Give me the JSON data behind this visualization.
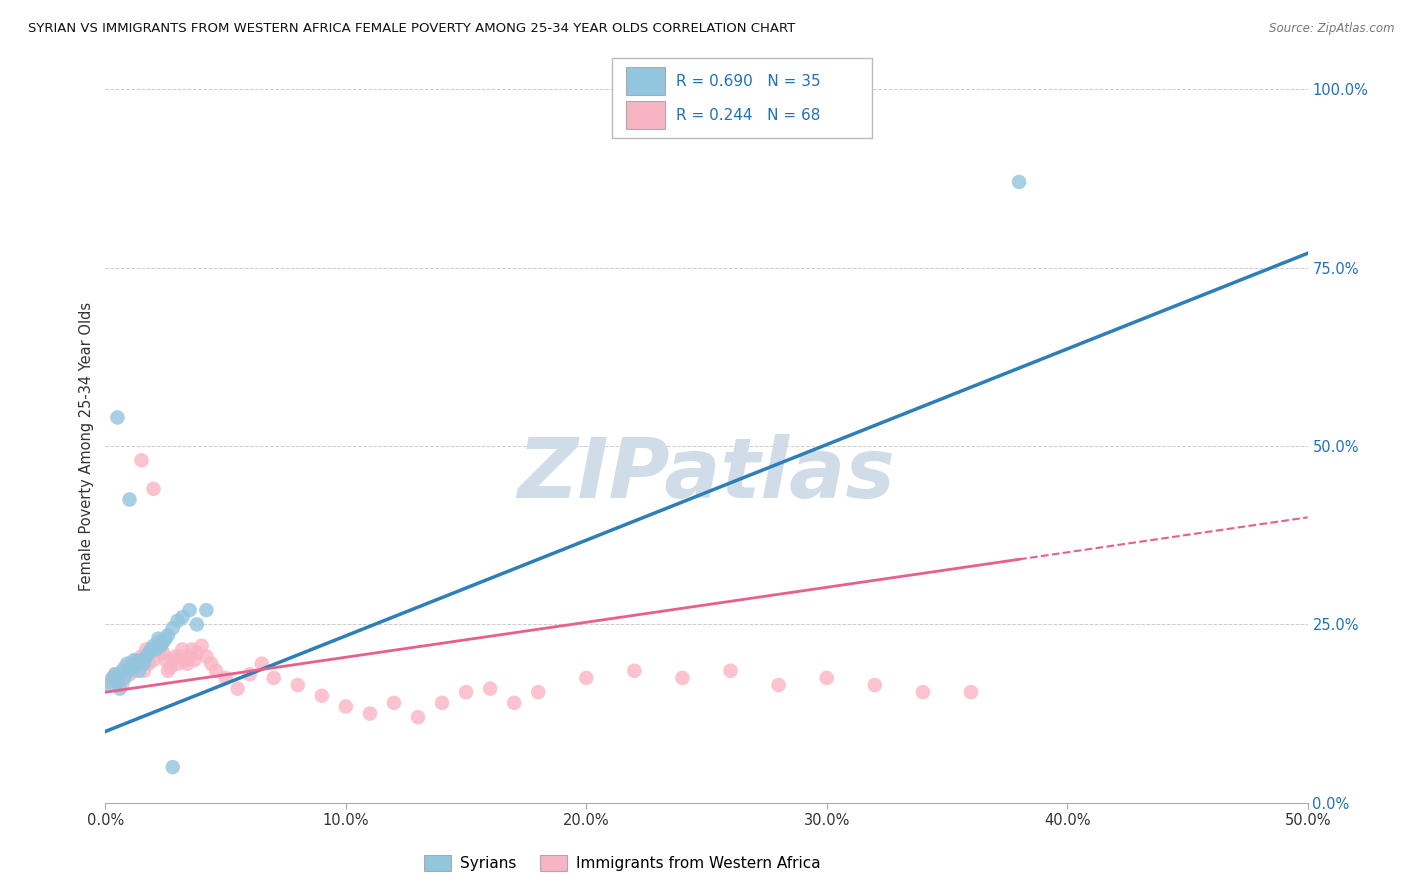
{
  "title": "SYRIAN VS IMMIGRANTS FROM WESTERN AFRICA FEMALE POVERTY AMONG 25-34 YEAR OLDS CORRELATION CHART",
  "source": "Source: ZipAtlas.com",
  "ylabel": "Female Poverty Among 25-34 Year Olds",
  "xlim": [
    0.0,
    0.5
  ],
  "ylim": [
    0.0,
    1.0
  ],
  "xlabel_vals": [
    0,
    0.1,
    0.2,
    0.3,
    0.4,
    0.5
  ],
  "xlabel_ticks": [
    "0.0%",
    "10.0%",
    "20.0%",
    "30.0%",
    "40.0%",
    "50.0%"
  ],
  "ylabel_vals": [
    0,
    0.25,
    0.5,
    0.75,
    1.0
  ],
  "ylabel_ticks": [
    "0.0%",
    "25.0%",
    "50.0%",
    "75.0%",
    "100.0%"
  ],
  "syrian_color": "#92c5de",
  "western_africa_color": "#f9b4c4",
  "syrian_line_color": "#2c7fb8",
  "western_africa_line_color": "#e8608a",
  "legend_color": "#2171b5",
  "watermark_text": "ZIPatlas",
  "watermark_color": "#d0dde8",
  "syrian_R": 0.69,
  "syrian_N": 35,
  "western_R": 0.244,
  "western_N": 68,
  "syrian_line_x0": 0.0,
  "syrian_line_y0": 0.1,
  "syrian_line_x1": 0.5,
  "syrian_line_y1": 0.77,
  "western_line_x0": 0.0,
  "western_line_y0": 0.155,
  "western_line_x1": 0.5,
  "western_line_y1": 0.4,
  "western_line_solid_end": 0.38,
  "syrian_x": [
    0.002,
    0.003,
    0.004,
    0.005,
    0.006,
    0.007,
    0.008,
    0.009,
    0.01,
    0.011,
    0.012,
    0.013,
    0.014,
    0.015,
    0.016,
    0.017,
    0.018,
    0.019,
    0.02,
    0.021,
    0.022,
    0.023,
    0.024,
    0.025,
    0.026,
    0.028,
    0.03,
    0.032,
    0.035,
    0.038,
    0.042,
    0.005,
    0.01,
    0.38,
    0.028
  ],
  "syrian_y": [
    0.165,
    0.175,
    0.18,
    0.17,
    0.16,
    0.185,
    0.175,
    0.195,
    0.185,
    0.19,
    0.2,
    0.195,
    0.185,
    0.2,
    0.195,
    0.205,
    0.21,
    0.215,
    0.22,
    0.215,
    0.23,
    0.22,
    0.225,
    0.23,
    0.235,
    0.245,
    0.255,
    0.26,
    0.27,
    0.25,
    0.27,
    0.54,
    0.425,
    0.87,
    0.05
  ],
  "western_x": [
    0.002,
    0.003,
    0.004,
    0.005,
    0.006,
    0.007,
    0.008,
    0.009,
    0.01,
    0.011,
    0.012,
    0.013,
    0.014,
    0.015,
    0.016,
    0.017,
    0.018,
    0.019,
    0.02,
    0.021,
    0.022,
    0.023,
    0.024,
    0.025,
    0.026,
    0.027,
    0.028,
    0.029,
    0.03,
    0.031,
    0.032,
    0.033,
    0.034,
    0.035,
    0.036,
    0.037,
    0.038,
    0.04,
    0.042,
    0.044,
    0.046,
    0.05,
    0.055,
    0.06,
    0.065,
    0.07,
    0.08,
    0.09,
    0.1,
    0.11,
    0.12,
    0.13,
    0.14,
    0.15,
    0.16,
    0.17,
    0.18,
    0.2,
    0.22,
    0.24,
    0.26,
    0.28,
    0.3,
    0.32,
    0.34,
    0.36,
    0.02,
    0.015
  ],
  "western_y": [
    0.17,
    0.175,
    0.18,
    0.17,
    0.175,
    0.165,
    0.19,
    0.185,
    0.18,
    0.195,
    0.185,
    0.2,
    0.195,
    0.205,
    0.185,
    0.215,
    0.195,
    0.21,
    0.2,
    0.215,
    0.225,
    0.22,
    0.21,
    0.2,
    0.185,
    0.19,
    0.2,
    0.205,
    0.195,
    0.205,
    0.215,
    0.2,
    0.195,
    0.205,
    0.215,
    0.2,
    0.21,
    0.22,
    0.205,
    0.195,
    0.185,
    0.175,
    0.16,
    0.18,
    0.195,
    0.175,
    0.165,
    0.15,
    0.135,
    0.125,
    0.14,
    0.12,
    0.14,
    0.155,
    0.16,
    0.14,
    0.155,
    0.175,
    0.185,
    0.175,
    0.185,
    0.165,
    0.175,
    0.165,
    0.155,
    0.155,
    0.44,
    0.48
  ]
}
